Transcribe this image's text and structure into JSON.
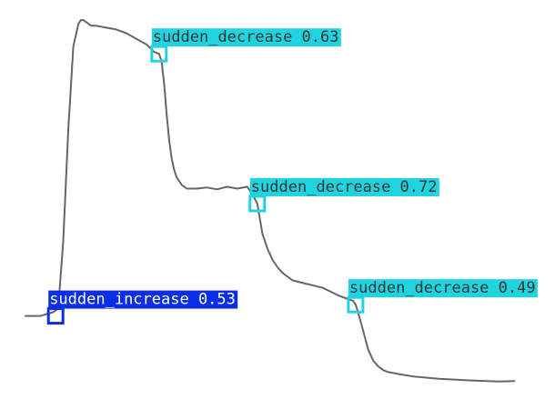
{
  "chart_data": {
    "type": "line",
    "title": "",
    "xlabel": "",
    "ylabel": "",
    "grid": false,
    "xlim": [
      0,
      100
    ],
    "ylim": [
      0,
      100
    ],
    "series": [
      {
        "x": [
          0,
          3,
          5.5,
          6.5,
          7.5,
          8.5,
          9.5,
          10.5,
          11,
          11.5,
          12,
          12.5,
          13,
          14,
          16,
          18,
          20,
          22,
          24,
          25.5,
          26.5,
          27,
          27.5,
          28,
          28.5,
          29,
          29.5,
          30,
          31,
          32,
          34,
          36,
          38,
          40,
          42,
          44,
          45,
          46,
          46.5,
          47,
          48,
          49,
          50,
          51,
          53,
          56,
          59,
          62,
          64,
          65,
          65.5,
          66,
          67,
          68,
          69,
          70,
          71,
          72,
          74,
          77,
          82,
          88,
          94,
          97
        ],
        "y": [
          20,
          20,
          21,
          22,
          40,
          70,
          92,
          98,
          99,
          99,
          98.5,
          98,
          97.5,
          97.5,
          97,
          96.5,
          95.5,
          94,
          92.5,
          90.5,
          90,
          88,
          82,
          74,
          67,
          62,
          59,
          57,
          55,
          54,
          54,
          54.3,
          53.8,
          54.5,
          54,
          54.5,
          52.5,
          50,
          46,
          42,
          38,
          35,
          33,
          31.5,
          29.5,
          28.5,
          27.5,
          25.5,
          24.5,
          24,
          23,
          21,
          16,
          11,
          8,
          6.5,
          5.5,
          5,
          4.5,
          3.8,
          3.2,
          2.8,
          2.5,
          2.6
        ]
      }
    ],
    "annotations": [
      {
        "label": "sudden_increase 0.53",
        "x": 6,
        "y": 20,
        "color": "#0a2ee6",
        "label_side": "above"
      },
      {
        "label": "sudden_decrease 0.63",
        "x": 26.5,
        "y": 90,
        "color": "#1ed4e0",
        "label_side": "above"
      },
      {
        "label": "sudden_decrease 0.72",
        "x": 46,
        "y": 50,
        "color": "#1ed4e0",
        "label_side": "above"
      },
      {
        "label": "sudden_decrease 0.49",
        "x": 65.5,
        "y": 23,
        "color": "#1ed4e0",
        "label_side": "above"
      }
    ]
  }
}
